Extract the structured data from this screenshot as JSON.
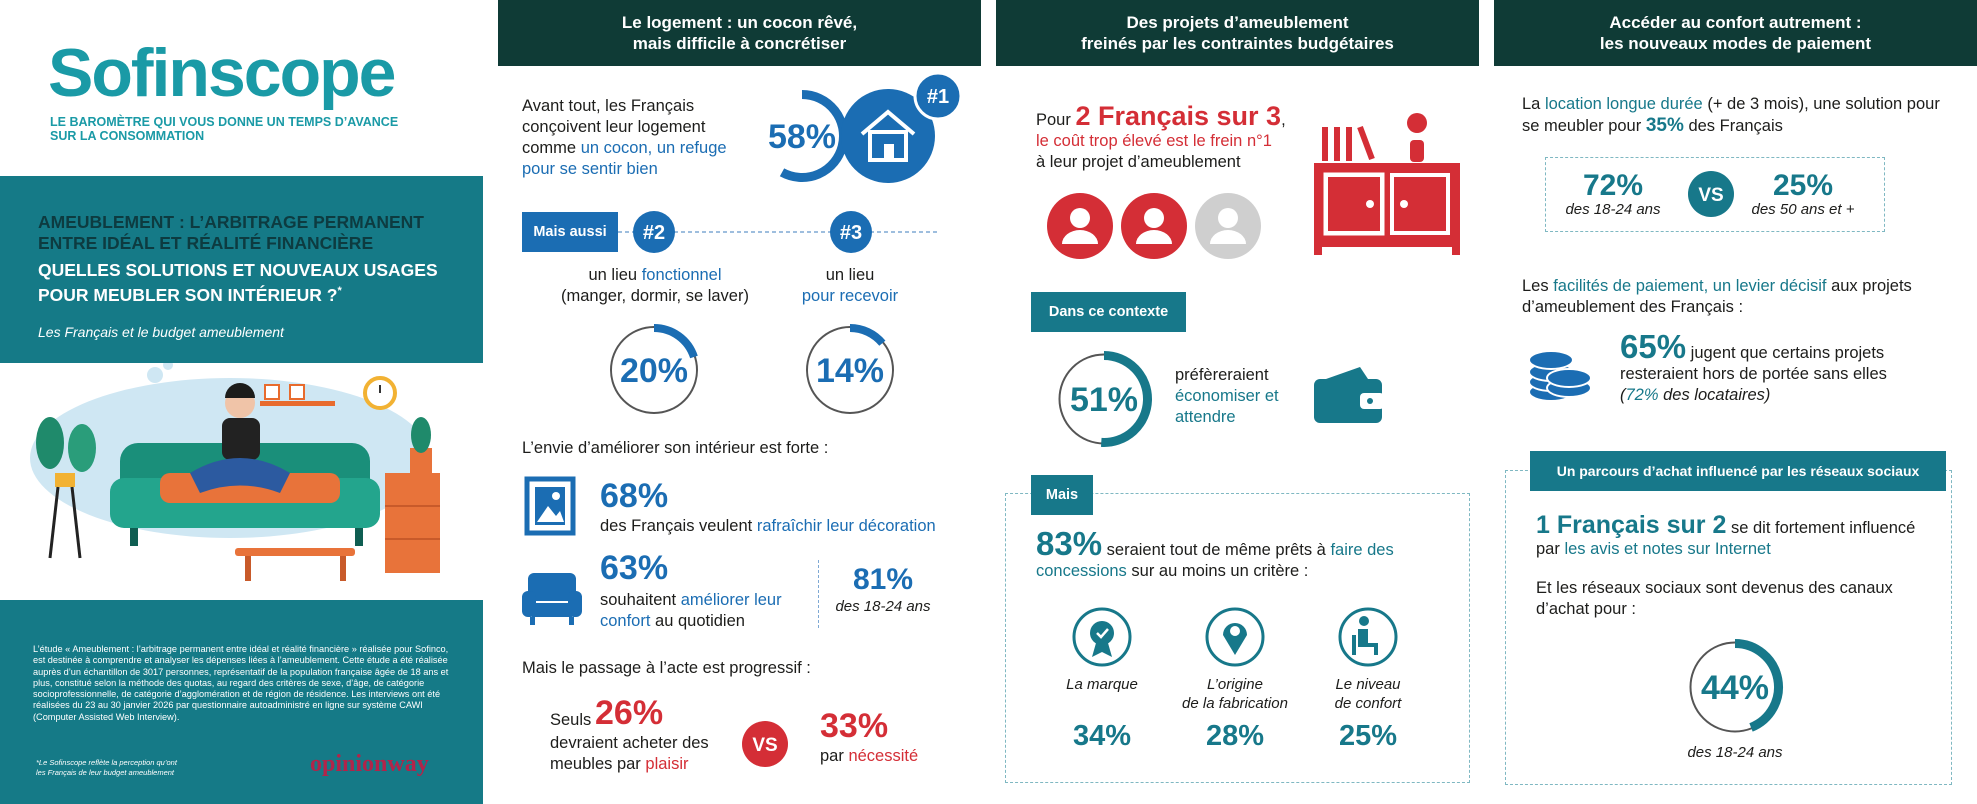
{
  "sidebar": {
    "logo": "Sofinscope",
    "tagline": [
      "LE BAROMÈTRE QUI VOUS DONNE UN TEMPS D’AVANCE",
      "SUR LA CONSOMMATION"
    ],
    "heading": "AMEUBLEMENT : L’ARBITRAGE PERMANENT ENTRE IDÉAL ET RÉALITÉ FINANCIÈRE",
    "subheading": "QUELLES SOLUTIONS ET NOUVEAUX USAGES POUR MEUBLER SON INTÉRIEUR ?",
    "asterisk": "*",
    "caption": "Les Français et le budget ameublement",
    "methodology": "L’étude « Ameublement : l’arbitrage permanent entre idéal et réalité financière » réalisée pour Sofinco, est destinée à comprendre et analyser les dépenses liées à l’ameublement. Cette étude a été réalisée auprès d’un échantillon de 3017 personnes, représentatif de la population française âgée de 18 ans et plus, constitué selon la méthode des quotas, au regard des critères de sexe, d’âge, de catégorie socioprofessionnelle, de catégorie d’agglomération et de région de résidence. Les interviews ont été réalisées du 23 au 30 janvier 2026 par questionnaire autoadministré en ligne sur système CAWI (Computer Assisted Web Interview).",
    "footnote": [
      "*Le Sofinscope reflète la perception qu’ont",
      "les Français de leur budget ameublement"
    ],
    "brand": "opinionway"
  },
  "logement": {
    "header": [
      "Le logement : un cocon rêvé,",
      "mais difficile à concrétiser"
    ],
    "intro": [
      "Avant tout, les Français conçoivent leur logement comme ",
      "un cocon, un refuge pour se sentir bien"
    ],
    "cocon": {
      "value": 58,
      "label": "58%"
    },
    "rank1": "#1",
    "mais_aussi": "Mais aussi",
    "fonctionnel": {
      "rank": "#2",
      "text": [
        "un lieu ",
        "fonctionnel",
        "(manger, dormir, se laver)"
      ],
      "share": {
        "value": 20,
        "label": "20%"
      }
    },
    "recevoir": {
      "rank": "#3",
      "text": [
        "un lieu",
        "pour recevoir"
      ],
      "share": {
        "value": 14,
        "label": "14%"
      }
    },
    "envie": "L’envie d’améliorer son intérieur est forte :",
    "decoration": {
      "value": "68%",
      "text": [
        "des Français veulent ",
        "rafraîchir leur décoration"
      ]
    },
    "confort": {
      "value": "63%",
      "text": [
        "souhaitent ",
        "améliorer leur confort",
        " au quotidien"
      ]
    },
    "jeunes": {
      "value": "81%",
      "text": "des 18-24 ans"
    },
    "passage": "Mais le passage à l’acte est progressif :",
    "plaisir": {
      "prefix": "Seuls",
      "value": "26%",
      "text": [
        "devraient acheter des meubles par ",
        "plaisir"
      ]
    },
    "vs": "VS",
    "necessite": {
      "value": "33%",
      "text": [
        "par ",
        "nécessité"
      ]
    }
  },
  "projets": {
    "header": [
      "Des projets d’ameublement",
      "freinés par les contraintes budgétaires"
    ],
    "frein": [
      "Pour ",
      "2 Français sur 3",
      ",",
      "le coût trop élevé est le frein n°1",
      "à leur projet d’ameublement"
    ],
    "contexte": "Dans ce contexte",
    "economiser": {
      "share": {
        "value": 51,
        "label": "51%"
      },
      "text": [
        "préfèreraient",
        "économiser et attendre"
      ]
    },
    "mais": "Mais",
    "concessions": [
      "83%",
      " seraient tout de même prêts à ",
      "faire des concessions",
      " sur au moins un critère :"
    ],
    "criteres": [
      {
        "label": [
          "La marque"
        ],
        "value": "34%"
      },
      {
        "label": [
          "L’origine",
          "de la fabrication"
        ],
        "value": "28%"
      },
      {
        "label": [
          "Le niveau",
          "de confort"
        ],
        "value": "25%"
      }
    ]
  },
  "paiement": {
    "header": [
      "Accéder au confort autrement :",
      "les nouveaux modes de paiement"
    ],
    "location": [
      "La ",
      "location longue durée",
      " (+ de 3 mois), une solution pour se meubler pour ",
      "35%",
      " des Français"
    ],
    "jeunes": {
      "value": "72%",
      "text": "des 18-24 ans"
    },
    "vs": "VS",
    "seniors": {
      "value": "25%",
      "text": "des 50 ans et +"
    },
    "facilites": [
      "Les ",
      "facilités de paiement, un levier décisif",
      " aux projets d’ameublement des Français :"
    ],
    "hors_portee": [
      "65%",
      " jugent que certains projets resteraient hors de portée sans elles",
      "(",
      "72%",
      " des locataires)"
    ],
    "reseaux": {
      "title": "Un parcours d’achat influencé par les réseaux sociaux",
      "influence": [
        "1 Français sur 2",
        " se dit fortement influencé par ",
        "les avis et notes sur Internet"
      ],
      "canaux": "Et les réseaux sociaux sont devenus des canaux d’achat pour :",
      "share": {
        "value": 44,
        "label": "44%"
      },
      "public": "des 18-24 ans"
    }
  }
}
